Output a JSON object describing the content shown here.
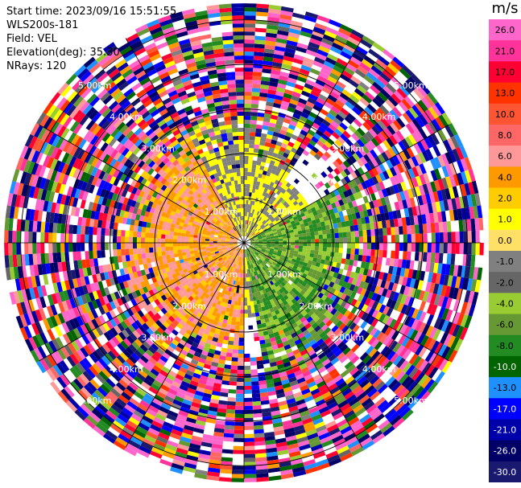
{
  "info": {
    "start_time": "Start time: 2023/09/16 15:51:55",
    "station": "WLS200s-181",
    "field": "Field: VEL",
    "elevation": "Elevation(deg): 35.30",
    "nrays": "NRays: 120"
  },
  "colorbar": {
    "unit": "m/s",
    "ticks": [
      "26.0",
      "21.0",
      "17.0",
      "13.0",
      "10.0",
      "8.0",
      "6.0",
      "4.0",
      "2.0",
      "1.0",
      "0.0",
      "-1.0",
      "-2.0",
      "-4.0",
      "-6.0",
      "-8.0",
      "-10.0",
      "-13.0",
      "-17.0",
      "-21.0",
      "-26.0",
      "-30.0"
    ],
    "colors": [
      "#ff66cc",
      "#ff3399",
      "#ff0033",
      "#ff3300",
      "#ff5533",
      "#ff6666",
      "#ff9999",
      "#ff9900",
      "#ffcc00",
      "#ffff00",
      "#ffe066",
      "#808080",
      "#666666",
      "#99cc33",
      "#669933",
      "#228b22",
      "#006400",
      "#1e90ff",
      "#0000ff",
      "#0000aa",
      "#000066",
      "#191970"
    ]
  },
  "chart_data": {
    "type": "heatmap",
    "field": "VEL",
    "units": "m/s",
    "nrays": 120,
    "elevation_deg": 35.3,
    "range_rings_km": [
      1.0,
      2.0,
      3.0,
      4.0,
      5.0
    ],
    "ring_labels": [
      "1.00km",
      "2.00km",
      "3.00km",
      "4.00km",
      "5.00km"
    ],
    "angular_lines_deg": [
      0,
      30,
      60,
      90,
      120,
      150
    ],
    "sectors": [
      {
        "azimuth_from": 180,
        "azimuth_to": 330,
        "dominant_range_m_s": [
          1,
          6
        ]
      },
      {
        "azimuth_from": 330,
        "azimuth_to": 30,
        "dominant_range_m_s": [
          -1,
          1
        ]
      },
      {
        "azimuth_from": 60,
        "azimuth_to": 170,
        "dominant_range_m_s": [
          -8,
          -2
        ]
      }
    ],
    "noise_beyond_km": 2.0
  }
}
